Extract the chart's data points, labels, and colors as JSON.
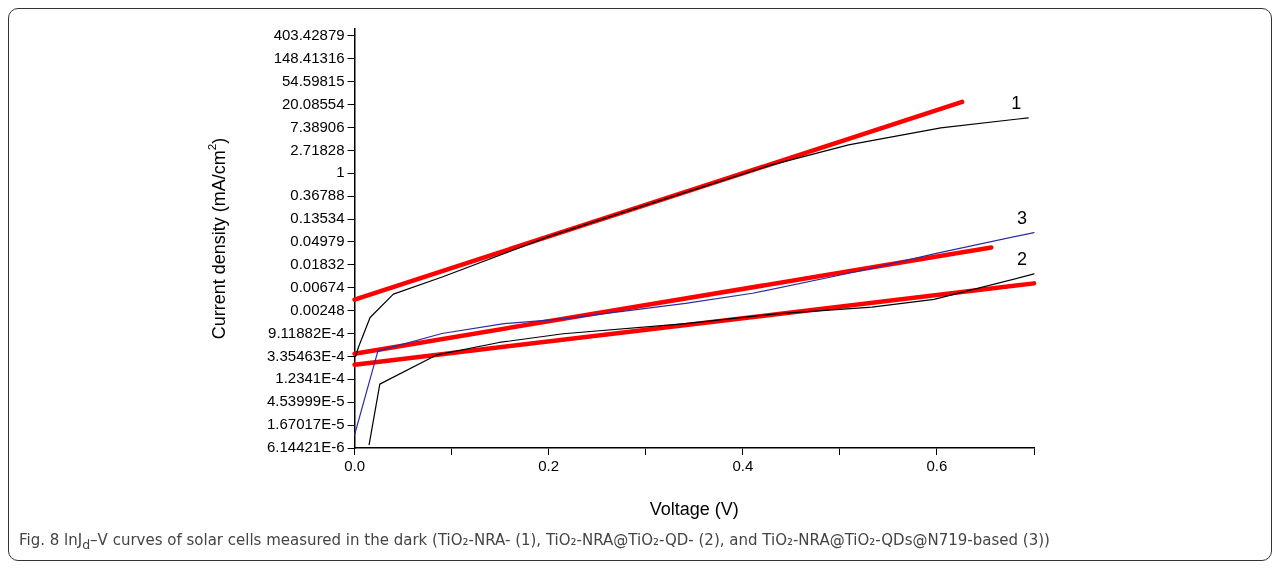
{
  "chart_data": {
    "type": "line",
    "xlabel": "Voltage (V)",
    "ylabel": "Current density (mA/cm$^{2}$)",
    "xlim": [
      0,
      0.7
    ],
    "xticks": [
      {
        "value": 0,
        "label": "0.0"
      },
      {
        "value": 0.1,
        "label": null
      },
      {
        "value": 0.2,
        "label": "0.2"
      },
      {
        "value": 0.3,
        "label": null
      },
      {
        "value": 0.4,
        "label": "0.4"
      },
      {
        "value": 0.5,
        "label": null
      },
      {
        "value": 0.6,
        "label": "0.6"
      },
      {
        "value": 0.7,
        "label": null
      }
    ],
    "ylim": [
      6.14421e-06,
      545
    ],
    "yticks": [
      {
        "value": 403.42879,
        "label": "403.42879"
      },
      {
        "value": 148.41316,
        "label": "148.41316"
      },
      {
        "value": 54.59815,
        "label": "54.59815"
      },
      {
        "value": 20.08554,
        "label": "20.08554"
      },
      {
        "value": 7.38906,
        "label": "7.38906"
      },
      {
        "value": 2.71828,
        "label": "2.71828"
      },
      {
        "value": 1,
        "label": "1"
      },
      {
        "value": 0.36788,
        "label": "0.36788"
      },
      {
        "value": 0.13534,
        "label": "0.13534"
      },
      {
        "value": 0.04979,
        "label": "0.04979"
      },
      {
        "value": 0.01832,
        "label": "0.01832"
      },
      {
        "value": 0.00674,
        "label": "0.00674"
      },
      {
        "value": 0.00248,
        "label": "0.00248"
      },
      {
        "value": 0.000911882,
        "label": "9.11882E-4"
      },
      {
        "value": 0.000335463,
        "label": "3.35463E-4"
      },
      {
        "value": 0.00012341,
        "label": "1.2341E-4"
      },
      {
        "value": 4.53999e-05,
        "label": "4.53999E-5"
      },
      {
        "value": 1.67017e-05,
        "label": "1.67017E-5"
      },
      {
        "value": 6.14421e-06,
        "label": "6.14421E-6"
      }
    ],
    "log": true,
    "grid": false,
    "legend": false,
    "marker": "none",
    "line_style": "solid",
    "series": [
      {
        "name": "1",
        "color": "#000000",
        "x": [
          0.001,
          0.004,
          0.016,
          0.04,
          0.091,
          0.2,
          0.3,
          0.429,
          0.509,
          0.604,
          0.694
        ],
        "values": [
          0.000335,
          0.0005,
          0.00184,
          0.00509,
          0.0109,
          0.0627,
          0.249,
          1.43,
          3.46,
          7.24,
          11.25
        ]
      },
      {
        "name": "2",
        "color": "#000000",
        "x": [
          0.015,
          0.026,
          0.085,
          0.149,
          0.215,
          0.341,
          0.434,
          0.533,
          0.597,
          0.7
        ],
        "values": [
          7.1e-06,
          0.0001,
          0.00036,
          0.000617,
          0.000903,
          0.0014,
          0.00216,
          0.00288,
          0.00405,
          0.0123
        ]
      },
      {
        "name": "3",
        "color": "#2b2ba0",
        "x": [
          0,
          0.024,
          0.09,
          0.154,
          0.215,
          0.341,
          0.41,
          0.523,
          0.597,
          0.7
        ],
        "values": [
          1.09e-05,
          0.000422,
          0.000912,
          0.0014,
          0.00173,
          0.00341,
          0.0053,
          0.0143,
          0.0296,
          0.075
        ]
      },
      {
        "color": "#ff0000",
        "x": [
          0,
          0.626
        ],
        "values": [
          0.004,
          22.6
        ]
      },
      {
        "color": "#ff0000",
        "x": [
          0,
          0.7
        ],
        "values": [
          0.000234,
          0.00815
        ]
      },
      {
        "color": "#ff0000",
        "x": [
          0,
          0.656
        ],
        "values": [
          0.000378,
          0.0392
        ]
      }
    ],
    "annotations": [
      "Fig. 8 lnJ$_{d}$–V curves of solar cells measured in the dark (TiO₂-NRA- (1), TiO₂-NRA@TiO₂-QD- (2), and TiO₂-NRA@TiO₂-QDs@N719-based (3))"
    ]
  }
}
